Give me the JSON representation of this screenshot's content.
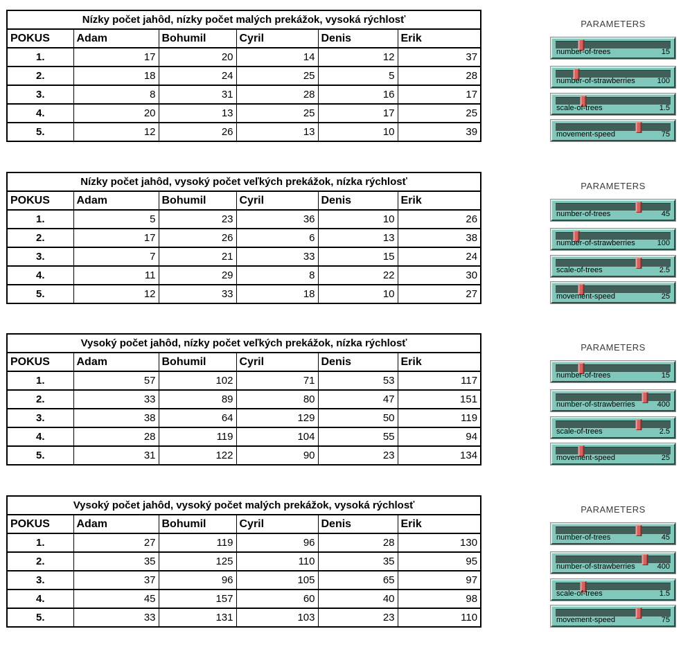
{
  "columns": [
    "POKUS",
    "Adam",
    "Bohumil",
    "Cyril",
    "Denis",
    "Erik"
  ],
  "colors": {
    "table_border": "#000000",
    "slider_body": "#7fc8bb",
    "slider_groove": "#415f58",
    "slider_thumb": "#d4625e",
    "heading_text": "#3c3c3c",
    "page_background": "#ffffff"
  },
  "groups": [
    {
      "title": "Nízky počet jahôd, nízky počet malých prekážok, vysoká rýchlosť",
      "rows": [
        {
          "label": "1.",
          "values": [
            17,
            20,
            14,
            12,
            37
          ]
        },
        {
          "label": "2.",
          "values": [
            18,
            24,
            25,
            5,
            28
          ]
        },
        {
          "label": "3.",
          "values": [
            8,
            31,
            28,
            16,
            17
          ]
        },
        {
          "label": "4.",
          "values": [
            20,
            13,
            25,
            17,
            25
          ]
        },
        {
          "label": "5.",
          "values": [
            12,
            26,
            13,
            10,
            39
          ]
        }
      ],
      "parameters": {
        "heading": "PARAMETERS",
        "sliders": [
          {
            "name": "number-of-trees",
            "value": "15",
            "thumb_pct": 22
          },
          {
            "name": "number-of-strawberries",
            "value": "100",
            "thumb_pct": 18
          },
          {
            "name": "scale-of-trees",
            "value": "1.5",
            "thumb_pct": 24
          },
          {
            "name": "movement-speed",
            "value": "75",
            "thumb_pct": 72
          }
        ]
      }
    },
    {
      "title": "Nízky počet jahôd, vysoký počet veľkých prekážok, nízka rýchlosť",
      "rows": [
        {
          "label": "1.",
          "values": [
            5,
            23,
            36,
            10,
            26
          ]
        },
        {
          "label": "2.",
          "values": [
            17,
            26,
            6,
            13,
            38
          ]
        },
        {
          "label": "3.",
          "values": [
            7,
            21,
            33,
            15,
            24
          ]
        },
        {
          "label": "4.",
          "values": [
            11,
            29,
            8,
            22,
            30
          ]
        },
        {
          "label": "5.",
          "values": [
            12,
            33,
            18,
            10,
            27
          ]
        }
      ],
      "parameters": {
        "heading": "PARAMETERS",
        "sliders": [
          {
            "name": "number-of-trees",
            "value": "45",
            "thumb_pct": 72
          },
          {
            "name": "number-of-strawberries",
            "value": "100",
            "thumb_pct": 18
          },
          {
            "name": "scale-of-trees",
            "value": "2.5",
            "thumb_pct": 72
          },
          {
            "name": "movement-speed",
            "value": "25",
            "thumb_pct": 22
          }
        ]
      }
    },
    {
      "title": "Vysoký počet jahôd, nízky počet veľkých prekážok, nízka rýchlosť",
      "rows": [
        {
          "label": "1.",
          "values": [
            57,
            102,
            71,
            53,
            117
          ]
        },
        {
          "label": "2.",
          "values": [
            33,
            89,
            80,
            47,
            151
          ]
        },
        {
          "label": "3.",
          "values": [
            38,
            64,
            129,
            50,
            119
          ]
        },
        {
          "label": "4.",
          "values": [
            28,
            119,
            104,
            55,
            94
          ]
        },
        {
          "label": "5.",
          "values": [
            31,
            122,
            90,
            23,
            134
          ]
        }
      ],
      "parameters": {
        "heading": "PARAMETERS",
        "sliders": [
          {
            "name": "number-of-trees",
            "value": "15",
            "thumb_pct": 22
          },
          {
            "name": "number-of-strawberries",
            "value": "400",
            "thumb_pct": 78
          },
          {
            "name": "scale-of-trees",
            "value": "2.5",
            "thumb_pct": 72
          },
          {
            "name": "movement-speed",
            "value": "25",
            "thumb_pct": 22
          }
        ]
      }
    },
    {
      "title": "Vysoký počet jahôd, vysoký počet malých prekážok, vysoká rýchlosť",
      "rows": [
        {
          "label": "1.",
          "values": [
            27,
            119,
            96,
            28,
            130
          ]
        },
        {
          "label": "2.",
          "values": [
            35,
            125,
            110,
            35,
            95
          ]
        },
        {
          "label": "3.",
          "values": [
            37,
            96,
            105,
            65,
            97
          ]
        },
        {
          "label": "4.",
          "values": [
            45,
            157,
            60,
            40,
            98
          ]
        },
        {
          "label": "5.",
          "values": [
            33,
            131,
            103,
            23,
            110
          ]
        }
      ],
      "parameters": {
        "heading": "PARAMETERS",
        "sliders": [
          {
            "name": "number-of-trees",
            "value": "45",
            "thumb_pct": 72
          },
          {
            "name": "number-of-strawberries",
            "value": "400",
            "thumb_pct": 78
          },
          {
            "name": "scale-of-trees",
            "value": "1.5",
            "thumb_pct": 24
          },
          {
            "name": "movement-speed",
            "value": "75",
            "thumb_pct": 72
          }
        ]
      }
    }
  ]
}
